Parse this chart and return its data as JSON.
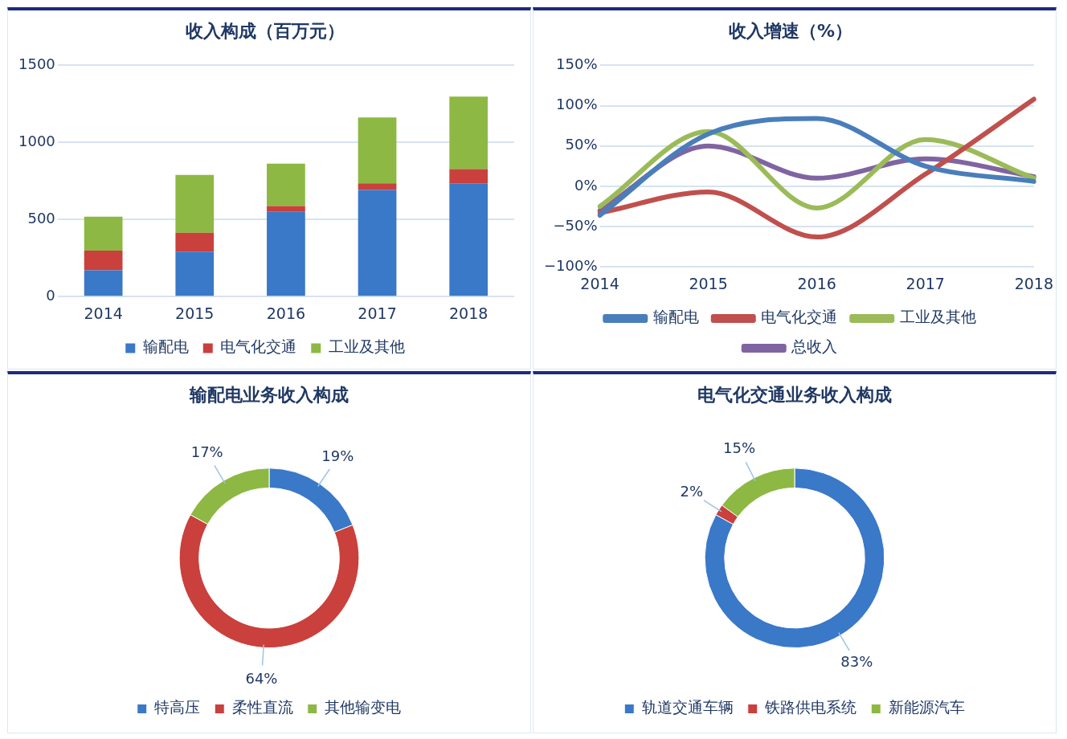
{
  "chart_data": [
    {
      "type": "bar",
      "title": "收入构成（百万元）",
      "categories": [
        "2014",
        "2015",
        "2016",
        "2017",
        "2018"
      ],
      "stacked": true,
      "ylim": [
        0,
        1500
      ],
      "yticks": [
        0,
        500,
        1000,
        1500
      ],
      "grid": "y",
      "legend": "bottom",
      "series": [
        {
          "name": "输配电",
          "color": "#3a78c8",
          "values": [
            171,
            292,
            550,
            691,
            735
          ]
        },
        {
          "name": "电气化交通",
          "color": "#c9403c",
          "values": [
            127,
            122,
            38,
            44,
            92
          ]
        },
        {
          "name": "工业及其他",
          "color": "#8db843",
          "values": [
            220,
            375,
            274,
            427,
            471
          ]
        }
      ]
    },
    {
      "type": "line",
      "title": "收入增速（%）",
      "categories": [
        "2014",
        "2015",
        "2016",
        "2017",
        "2018"
      ],
      "ylim": [
        -100,
        150
      ],
      "yticks": [
        {
          "value": -100,
          "label": "−100%"
        },
        {
          "value": -50,
          "label": "−50%"
        },
        {
          "value": 0,
          "label": "0%"
        },
        {
          "value": 50,
          "label": "50%"
        },
        {
          "value": 100,
          "label": "100%"
        },
        {
          "value": 150,
          "label": "150%"
        }
      ],
      "grid": "y",
      "legend": "bottom",
      "series": [
        {
          "name": "输配电",
          "color": "#4a7ebb",
          "values": [
            -36,
            65,
            84,
            25,
            6
          ]
        },
        {
          "name": "电气化交通",
          "color": "#c0504d",
          "values": [
            -33,
            -7,
            -63,
            15,
            108
          ]
        },
        {
          "name": "工业及其他",
          "color": "#9bbb59",
          "values": [
            -25,
            68,
            -27,
            58,
            10
          ]
        },
        {
          "name": "总收入",
          "color": "#8064a2",
          "values": [
            -30,
            50,
            10,
            34,
            12
          ]
        }
      ]
    },
    {
      "type": "donut",
      "title": "输配电业务收入构成",
      "categories": [
        "特高压",
        "柔性直流",
        "其他输变电"
      ],
      "values": [
        19,
        64,
        17
      ],
      "value_labels": [
        "19%",
        "64%",
        "17%"
      ],
      "colors": [
        "#3a78c8",
        "#c9403c",
        "#8db843"
      ],
      "legend": "bottom"
    },
    {
      "type": "donut",
      "title": "电气化交通业务收入构成",
      "categories": [
        "轨道交通车辆",
        "铁路供电系统",
        "新能源汽车"
      ],
      "values": [
        83,
        2,
        15
      ],
      "value_labels": [
        "83%",
        "2%",
        "15%"
      ],
      "colors": [
        "#3a78c8",
        "#c9403c",
        "#8db843"
      ],
      "legend": "bottom"
    }
  ]
}
